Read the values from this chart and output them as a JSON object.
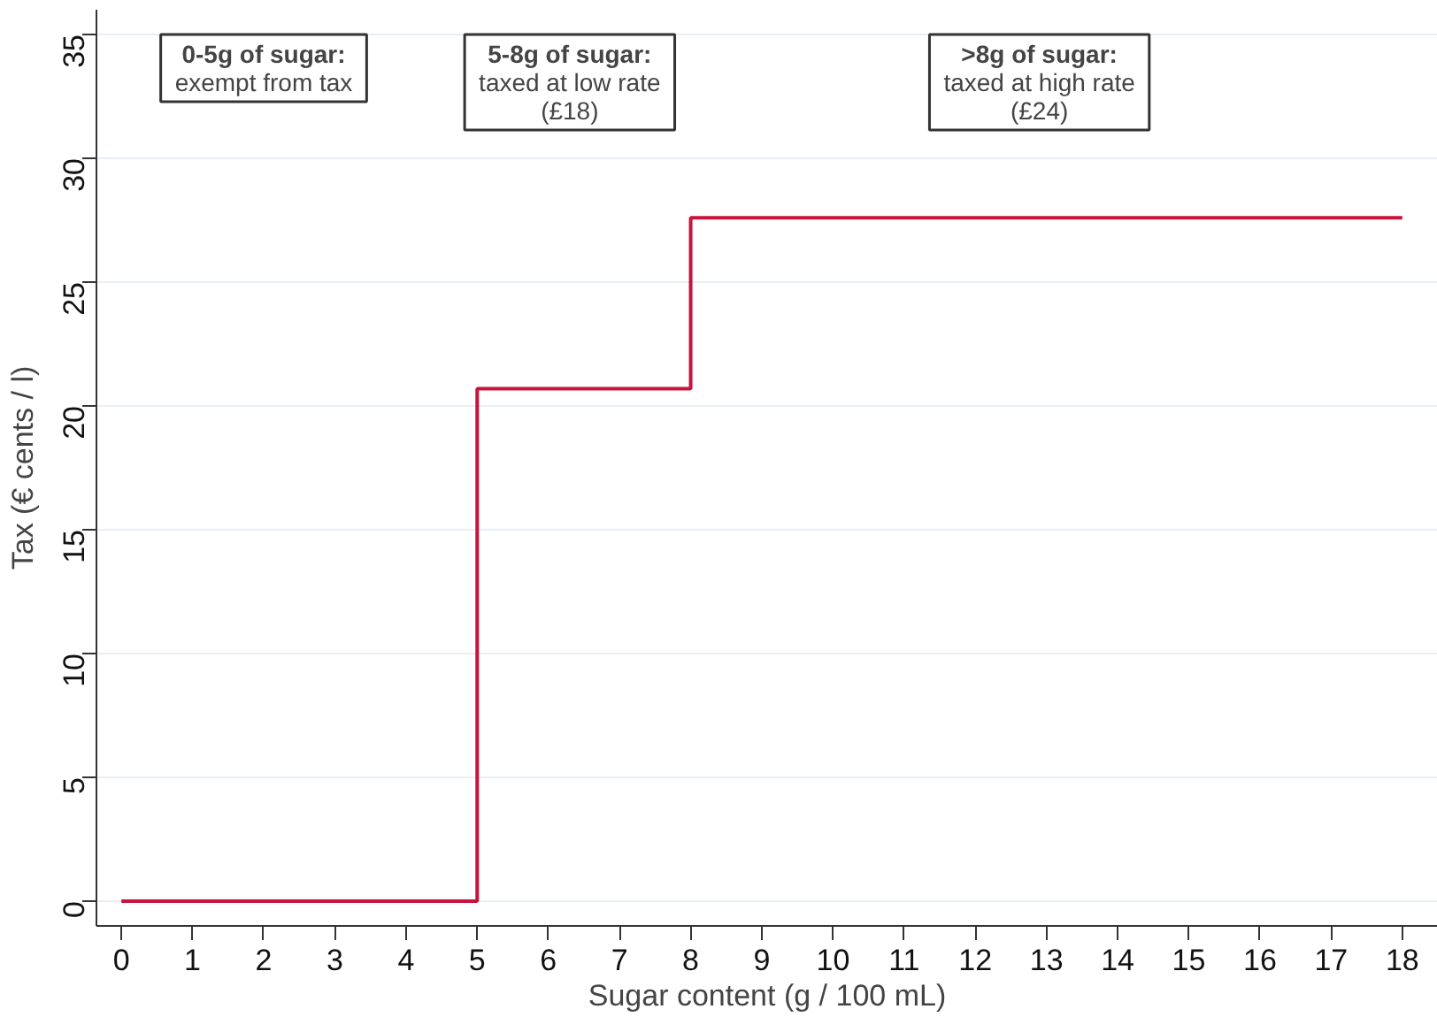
{
  "chart_data": {
    "type": "step",
    "xlabel": "Sugar content (g / 100 mL)",
    "ylabel": "Tax (€ cents / l)",
    "x": [
      0,
      5,
      8,
      18
    ],
    "series": [
      {
        "color": "#c8143c",
        "values": [
          0,
          20.7,
          27.6,
          27.6
        ]
      }
    ],
    "xlim": [
      -0.35,
      18.5
    ],
    "ylim": [
      -1,
      36
    ],
    "xticks": [
      0,
      1,
      2,
      3,
      4,
      5,
      6,
      7,
      8,
      9,
      10,
      11,
      12,
      13,
      14,
      15,
      16,
      17,
      18
    ],
    "yticks": [
      0,
      5,
      10,
      15,
      20,
      25,
      30,
      35
    ],
    "grid": "y",
    "annotations": [
      "0-5g of sugar:\nexempt from tax",
      "5-8g of sugar:\ntaxed at low rate\n(£18)",
      ">8g of sugar:\ntaxed at high rate\n(£24)"
    ]
  }
}
